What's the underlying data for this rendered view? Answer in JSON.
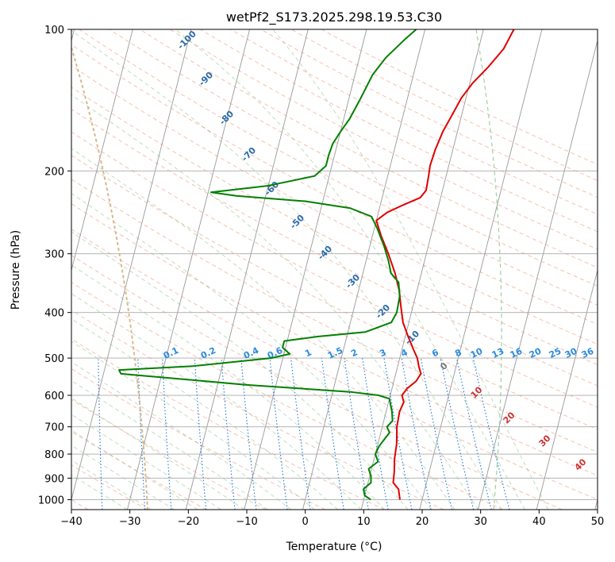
{
  "chart_data": {
    "type": "line",
    "title": "wetPf2_S173.2025.298.19.53.C30",
    "xlabel": "Temperature (°C)",
    "ylabel": "Pressure (hPa)",
    "xlim": [
      -40,
      50
    ],
    "ylim": [
      1050,
      100
    ],
    "y_scale": "log",
    "skew": "skew-T",
    "x_ticks": [
      "−40",
      "−30",
      "−20",
      "−10",
      "0",
      "10",
      "20",
      "30",
      "40",
      "50"
    ],
    "y_ticks": [
      "1000",
      "900",
      "800",
      "700",
      "600",
      "500",
      "400",
      "300",
      "200",
      "100"
    ],
    "grid": true,
    "series": [
      {
        "color": "#e00000",
        "points": [
          [
            16.2,
            1000
          ],
          [
            15.5,
            950
          ],
          [
            14.3,
            920
          ],
          [
            14.0,
            870
          ],
          [
            13.5,
            820
          ],
          [
            13.2,
            760
          ],
          [
            12.5,
            700
          ],
          [
            12.3,
            650
          ],
          [
            12.6,
            620
          ],
          [
            12.0,
            600
          ],
          [
            12.6,
            580
          ],
          [
            13.8,
            560
          ],
          [
            14.3,
            540
          ],
          [
            13.6,
            520
          ],
          [
            13.0,
            500
          ],
          [
            12.0,
            480
          ],
          [
            10.5,
            450
          ],
          [
            9.0,
            420
          ],
          [
            8.0,
            390
          ],
          [
            7.0,
            360
          ],
          [
            5.5,
            330
          ],
          [
            3.5,
            300
          ],
          [
            1.5,
            275
          ],
          [
            0.0,
            255
          ],
          [
            1.5,
            245
          ],
          [
            4.0,
            236
          ],
          [
            6.5,
            228
          ],
          [
            7.2,
            220
          ],
          [
            7.0,
            205
          ],
          [
            6.8,
            195
          ],
          [
            7.0,
            180
          ],
          [
            7.5,
            165
          ],
          [
            8.5,
            150
          ],
          [
            9.2,
            140
          ],
          [
            10.5,
            130
          ],
          [
            12.5,
            120
          ],
          [
            14.3,
            110
          ],
          [
            15.2,
            100
          ]
        ]
      },
      {
        "color": "#008000",
        "points": [
          [
            11.2,
            1000
          ],
          [
            10.0,
            980
          ],
          [
            9.5,
            950
          ],
          [
            10.5,
            920
          ],
          [
            10.2,
            890
          ],
          [
            9.5,
            860
          ],
          [
            10.8,
            830
          ],
          [
            10.0,
            800
          ],
          [
            10.3,
            770
          ],
          [
            11.0,
            740
          ],
          [
            11.5,
            720
          ],
          [
            10.8,
            700
          ],
          [
            11.5,
            680
          ],
          [
            11.0,
            650
          ],
          [
            10.5,
            630
          ],
          [
            10.0,
            610
          ],
          [
            8.0,
            600
          ],
          [
            3.0,
            590
          ],
          [
            -15.0,
            570
          ],
          [
            -37.0,
            540
          ],
          [
            -37.5,
            530
          ],
          [
            -25.0,
            520
          ],
          [
            -12.0,
            500
          ],
          [
            -9.0,
            490
          ],
          [
            -10.5,
            475
          ],
          [
            -10.5,
            460
          ],
          [
            -5.0,
            450
          ],
          [
            3.0,
            440
          ],
          [
            7.0,
            420
          ],
          [
            7.5,
            400
          ],
          [
            7.3,
            370
          ],
          [
            6.5,
            345
          ],
          [
            4.8,
            330
          ],
          [
            3.8,
            310
          ],
          [
            2.5,
            290
          ],
          [
            0.5,
            265
          ],
          [
            -1.0,
            250
          ],
          [
            -5.0,
            240
          ],
          [
            -13.0,
            232
          ],
          [
            -25.0,
            226
          ],
          [
            -29.5,
            222
          ],
          [
            -20.0,
            215
          ],
          [
            -12.5,
            205
          ],
          [
            -11.0,
            195
          ],
          [
            -11.0,
            185
          ],
          [
            -10.8,
            175
          ],
          [
            -10.0,
            165
          ],
          [
            -9.0,
            155
          ],
          [
            -8.0,
            140
          ],
          [
            -7.0,
            125
          ],
          [
            -5.5,
            115
          ],
          [
            -3.0,
            105
          ],
          [
            -1.5,
            100
          ]
        ]
      }
    ],
    "dry_adiabat_labels": [
      "-100",
      "-90",
      "-80",
      "-70",
      "-60",
      "-50",
      "-40",
      "-30",
      "-20",
      "-10",
      "0",
      "10",
      "20",
      "30",
      "40"
    ],
    "mixing_ratio_labels": [
      "0.1",
      "0.2",
      "0.4",
      "0.6",
      "1",
      "1.5",
      "2",
      "3",
      "4",
      "6",
      "8",
      "10",
      "13",
      "16",
      "20",
      "25",
      "30",
      "36"
    ]
  }
}
